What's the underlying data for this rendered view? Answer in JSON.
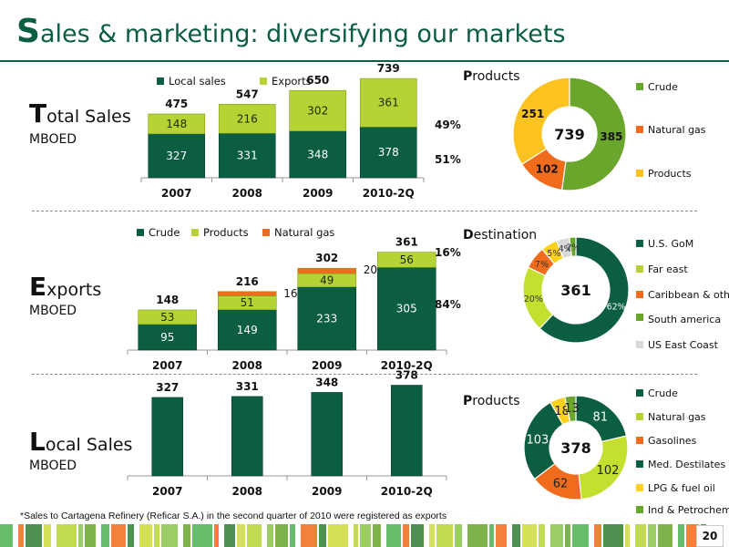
{
  "page": {
    "title_cap": "S",
    "title_rest": "ales & marketing: diversifying our markets",
    "footnote": "*Sales to Cartagena Refinery (Reficar S.A.) in the second quarter of 2010 were registered as exports",
    "page_number": "20"
  },
  "colors": {
    "dark_green": "#0b5e3f",
    "lime": "#b5d334",
    "orange": "#f06b1c",
    "yellow": "#fcd21f",
    "light_gray": "#d9d9d9"
  },
  "sections": {
    "total": {
      "cap": "T",
      "rest": "otal Sales",
      "unit": "MBOED"
    },
    "exports": {
      "cap": "E",
      "rest": "xports",
      "unit": "MBOED"
    },
    "local": {
      "cap": "L",
      "rest": "ocal Sales",
      "unit": "MBOED"
    }
  },
  "pie_headers": {
    "products_top": {
      "cap": "P",
      "rest": "roducts"
    },
    "destination": {
      "cap": "D",
      "rest": "estination"
    },
    "products_bottom": {
      "cap": "P",
      "rest": "roducts"
    }
  },
  "chart_data": [
    {
      "id": "total_sales",
      "type": "bar",
      "stacked": true,
      "categories": [
        "2007",
        "2008",
        "2009",
        "2010-2Q"
      ],
      "series": [
        {
          "name": "Local sales",
          "color": "#0b5e3f",
          "values": [
            327,
            331,
            348,
            378
          ]
        },
        {
          "name": "Exports",
          "color": "#b5d334",
          "values": [
            148,
            216,
            302,
            361
          ]
        }
      ],
      "totals": [
        475,
        547,
        650,
        739
      ],
      "annotations": [
        {
          "label": "49%"
        },
        {
          "label": "51%"
        }
      ],
      "ylim": [
        0,
        760
      ],
      "legend": "top"
    },
    {
      "id": "exports",
      "type": "bar",
      "stacked": true,
      "categories": [
        "2007",
        "2008",
        "2009",
        "2010-2Q"
      ],
      "series": [
        {
          "name": "Crude",
          "color": "#0b5e3f",
          "values": [
            95,
            149,
            233,
            305
          ]
        },
        {
          "name": "Products",
          "color": "#b5d334",
          "values": [
            53,
            51,
            49,
            56
          ]
        },
        {
          "name": "Natural gas",
          "color": "#f06b1c",
          "values": [
            0,
            16,
            20,
            0
          ]
        }
      ],
      "totals": [
        148,
        216,
        302,
        361
      ],
      "annotations": [
        {
          "label": "16%"
        },
        {
          "label": "84%"
        }
      ],
      "ylim": [
        0,
        380
      ],
      "legend": "top"
    },
    {
      "id": "local_sales",
      "type": "bar",
      "categories": [
        "2007",
        "2008",
        "2009",
        "2010-2Q"
      ],
      "values": [
        327,
        331,
        348,
        378
      ],
      "color": "#0b5e3f",
      "ylim": [
        0,
        380
      ]
    },
    {
      "id": "products_top_pie",
      "type": "pie",
      "donut": true,
      "center_label": "739",
      "slices": [
        {
          "name": "Crude",
          "value": 385,
          "label": "385",
          "color": "#6aa52c"
        },
        {
          "name": "Natural gas",
          "value": 102,
          "label": "102",
          "color": "#f06b1c"
        },
        {
          "name": "Products",
          "value": 251,
          "label": "251",
          "color": "#fcc21f"
        }
      ],
      "legend": "right"
    },
    {
      "id": "destination_pie",
      "type": "pie",
      "donut": true,
      "center_label": "361",
      "slices": [
        {
          "name": "U.S. GoM",
          "value": 62,
          "label": "62%",
          "color": "#0b5e3f"
        },
        {
          "name": "Far east",
          "value": 20,
          "label": "20%",
          "color": "#c4df2e"
        },
        {
          "name": "Caribbean & others",
          "value": 7,
          "label": "7%",
          "color": "#f06b1c"
        },
        {
          "name": "South america",
          "value": 5,
          "label": "5%",
          "color": "#fcd21f"
        },
        {
          "name": "US East Coast",
          "value": 4,
          "label": "4%",
          "color": "#d9d9d9"
        },
        {
          "name": "",
          "value": 2,
          "label": "2%",
          "color": "#6aa52c"
        }
      ],
      "legend_items": [
        {
          "name": "U.S. GoM",
          "color": "#0b5e3f"
        },
        {
          "name": "Far east",
          "color": "#b5d334"
        },
        {
          "name": "Caribbean & others",
          "color": "#f06b1c"
        },
        {
          "name": "South america",
          "color": "#6aa52c"
        },
        {
          "name": "US East Coast",
          "color": "#d9d9d9"
        }
      ],
      "legend": "right"
    },
    {
      "id": "products_bottom_pie",
      "type": "pie",
      "donut": true,
      "center_label": "378",
      "slices": [
        {
          "name": "Crude",
          "value": 81,
          "label": "81",
          "color": "#0b5e3f"
        },
        {
          "name": "Natural gas",
          "value": 102,
          "label": "102",
          "color": "#c4df2e"
        },
        {
          "name": "Gasolines",
          "value": 62,
          "label": "62",
          "color": "#f06b1c"
        },
        {
          "name": "Med. Destilates",
          "value": 103,
          "label": "103",
          "color": "#0b5e3f"
        },
        {
          "name": "LPG & fuel oil",
          "value": 18,
          "label": "18",
          "color": "#fcd21f"
        },
        {
          "name": "Ind & Petrochem",
          "value": 13,
          "label": "13",
          "color": "#6aa52c"
        }
      ],
      "legend_items": [
        {
          "name": "Crude",
          "color": "#0b5e3f"
        },
        {
          "name": "Natural gas",
          "color": "#b5d334"
        },
        {
          "name": "Gasolines",
          "color": "#f06b1c"
        },
        {
          "name": "Med. Destilates",
          "color": "#0b5e3f"
        },
        {
          "name": "LPG & fuel oil",
          "color": "#fcd21f"
        },
        {
          "name": "Ind & Petrochem",
          "color": "#6aa52c"
        }
      ],
      "legend": "right"
    }
  ]
}
